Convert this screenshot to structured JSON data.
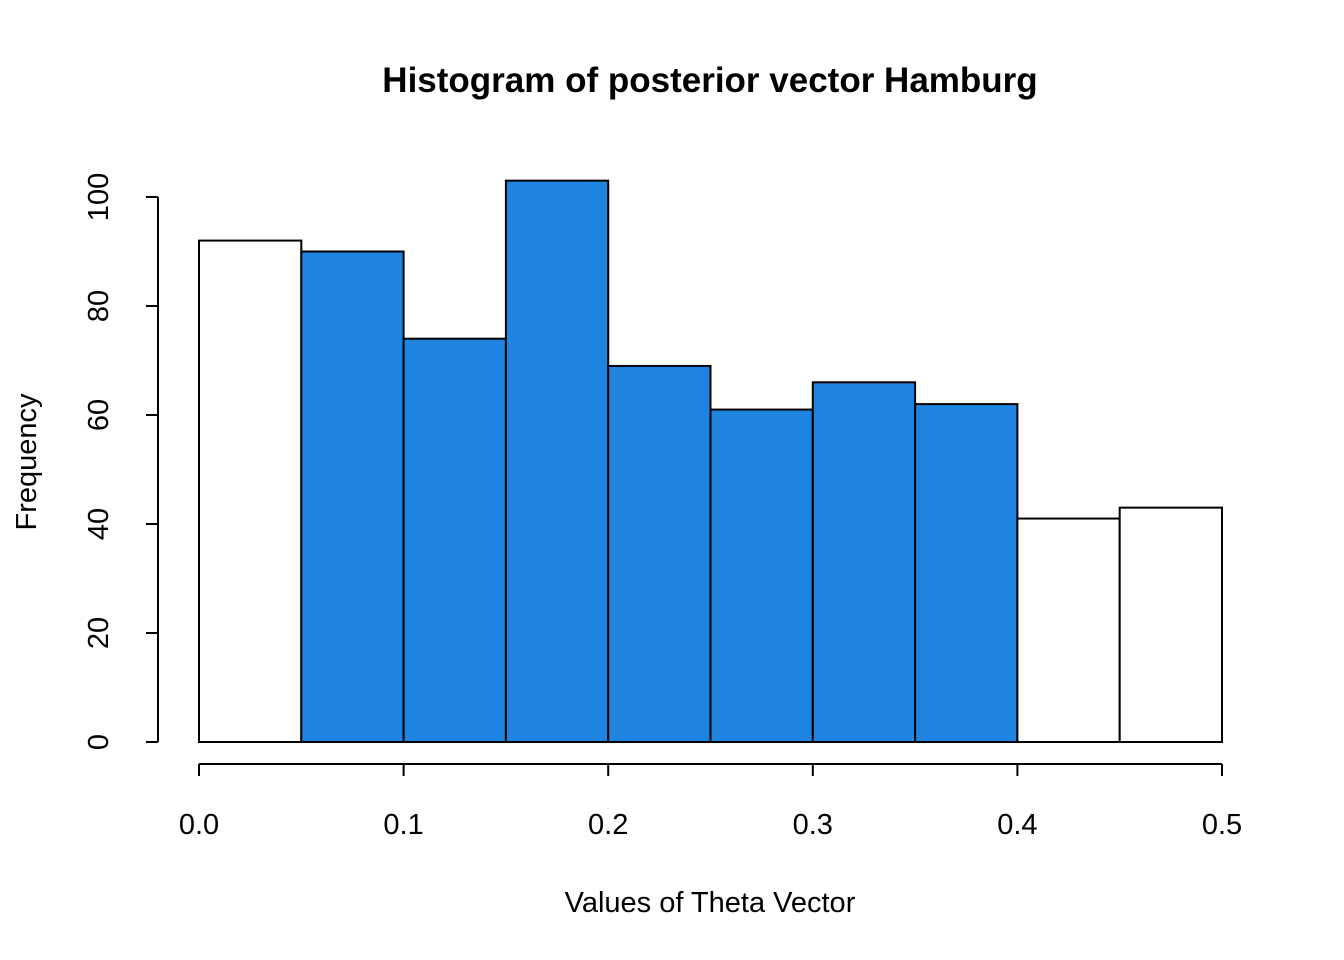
{
  "chart_data": {
    "type": "bar",
    "title": "Histogram of posterior vector Hamburg",
    "xlabel": "Values of Theta Vector",
    "ylabel": "Frequency",
    "bins": [
      {
        "x0": 0.0,
        "x1": 0.05,
        "count": 92,
        "highlighted": false
      },
      {
        "x0": 0.05,
        "x1": 0.1,
        "count": 90,
        "highlighted": true
      },
      {
        "x0": 0.1,
        "x1": 0.15,
        "count": 74,
        "highlighted": true
      },
      {
        "x0": 0.15,
        "x1": 0.2,
        "count": 103,
        "highlighted": true
      },
      {
        "x0": 0.2,
        "x1": 0.25,
        "count": 69,
        "highlighted": true
      },
      {
        "x0": 0.25,
        "x1": 0.3,
        "count": 61,
        "highlighted": true
      },
      {
        "x0": 0.3,
        "x1": 0.35,
        "count": 66,
        "highlighted": true
      },
      {
        "x0": 0.35,
        "x1": 0.4,
        "count": 62,
        "highlighted": true
      },
      {
        "x0": 0.4,
        "x1": 0.45,
        "count": 41,
        "highlighted": false
      },
      {
        "x0": 0.45,
        "x1": 0.5,
        "count": 43,
        "highlighted": false
      }
    ],
    "xlim": [
      0,
      0.5
    ],
    "ylim": [
      0,
      100
    ],
    "xticks": [
      0.0,
      0.1,
      0.2,
      0.3,
      0.4,
      0.5
    ],
    "xtick_labels": [
      "0.0",
      "0.1",
      "0.2",
      "0.3",
      "0.4",
      "0.5"
    ],
    "yticks": [
      0,
      20,
      40,
      60,
      80,
      100
    ],
    "ytick_labels": [
      "0",
      "20",
      "40",
      "60",
      "80",
      "100"
    ],
    "highlight_color": "#1f83e0",
    "default_color": "#ffffff",
    "grid": false,
    "legend": "none"
  }
}
